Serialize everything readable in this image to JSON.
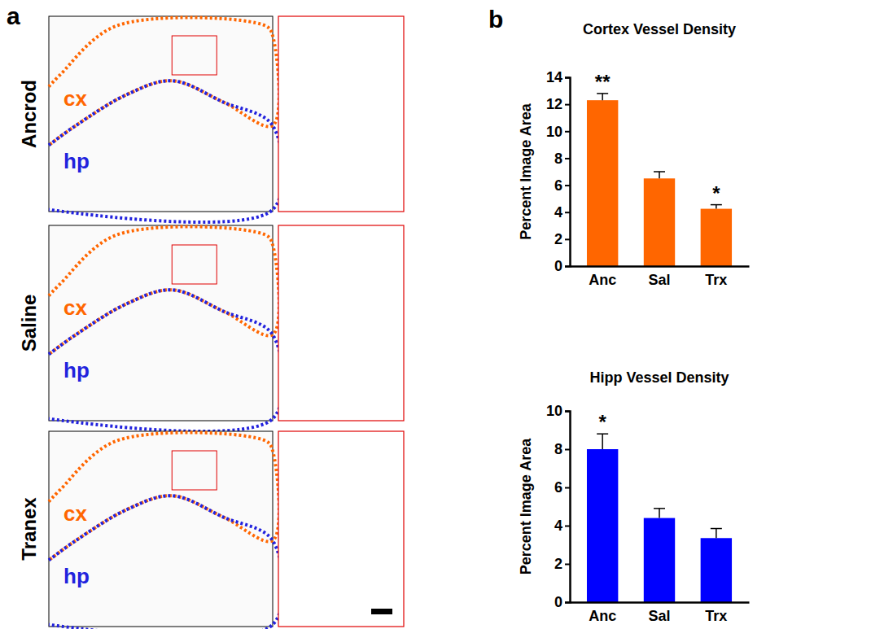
{
  "figure": {
    "panel_letters": [
      "a",
      "b"
    ],
    "images": {
      "rows": [
        "Ancrod",
        "Saline",
        "Tranex"
      ],
      "region_labels": [
        "cx",
        "hp"
      ]
    }
  },
  "chart_data": [
    {
      "type": "bar",
      "title": "Cortex Vessel Density",
      "y_label": "Percent Image Area",
      "categories": [
        "Anc",
        "Sal",
        "Trx"
      ],
      "values": [
        12.3,
        6.5,
        4.25
      ],
      "errors": [
        0.5,
        0.5,
        0.3
      ],
      "significance": [
        "**",
        null,
        "*"
      ],
      "color": "#ff6600",
      "ylim": [
        0,
        14
      ],
      "yticks": [
        0,
        2,
        4,
        6,
        8,
        10,
        12,
        14
      ],
      "grid": false
    },
    {
      "type": "bar",
      "title": "Hipp Vessel Density",
      "y_label": "Percent Image Area",
      "categories": [
        "Anc",
        "Sal",
        "Trx"
      ],
      "values": [
        8.0,
        4.4,
        3.35
      ],
      "errors": [
        0.8,
        0.5,
        0.5
      ],
      "significance": [
        "*",
        null,
        null
      ],
      "color": "#0000ff",
      "ylim": [
        0,
        10
      ],
      "yticks": [
        0,
        2,
        4,
        6,
        8,
        10
      ],
      "grid": false
    }
  ]
}
